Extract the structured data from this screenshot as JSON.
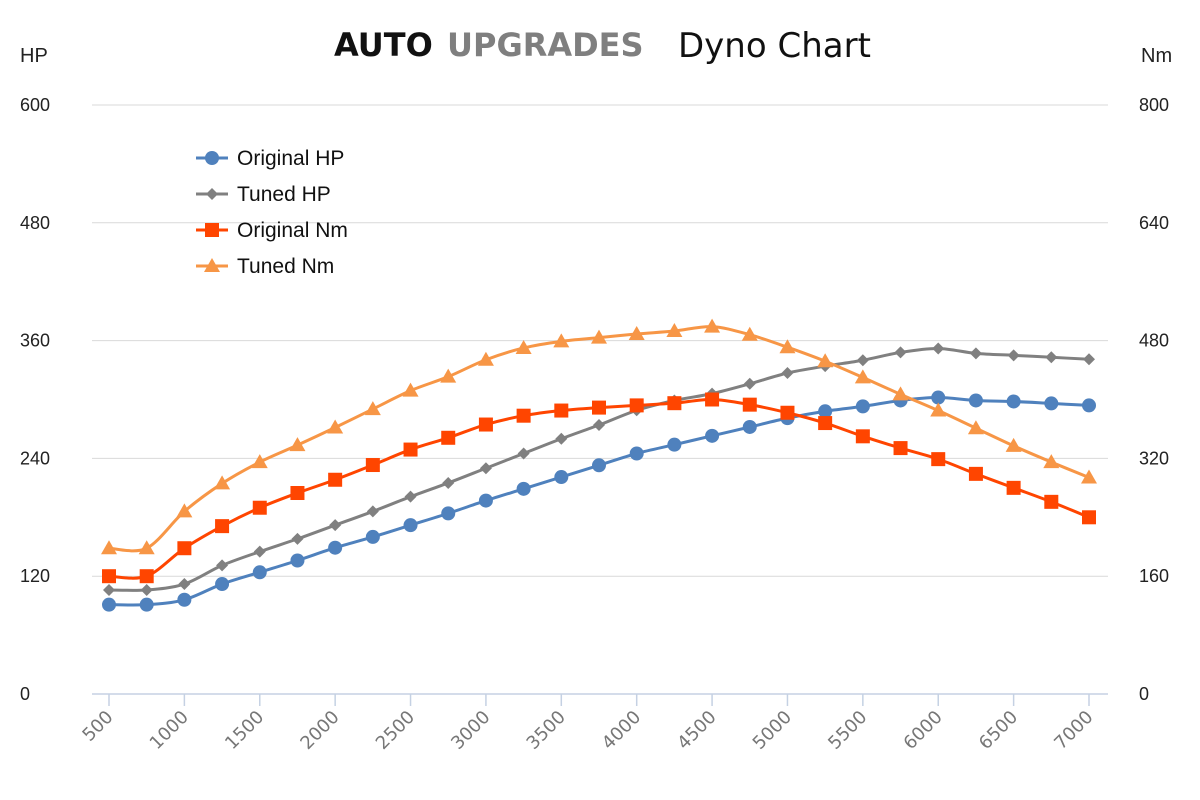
{
  "header": {
    "brand_bold": "AUTO",
    "brand_gray": "UPGRADES",
    "title": "Dyno Chart"
  },
  "chart_data": {
    "type": "line",
    "title": "Dyno Chart",
    "ylabel_left": "HP",
    "ylabel_right": "Nm",
    "ylim_left": [
      0,
      600
    ],
    "ylim_right": [
      0,
      800
    ],
    "yticks_left": [
      "0",
      "120",
      "240",
      "360",
      "480",
      "600"
    ],
    "yticks_right": [
      "0",
      "160",
      "320",
      "480",
      "640",
      "800"
    ],
    "x": [
      500,
      750,
      1000,
      1250,
      1500,
      1750,
      2000,
      2250,
      2500,
      2750,
      3000,
      3250,
      3500,
      3750,
      4000,
      4250,
      4500,
      4750,
      5000,
      5250,
      5500,
      5750,
      6000,
      6250,
      6500,
      6750,
      7000
    ],
    "xticks": [
      "500",
      "1000",
      "1500",
      "2000",
      "2500",
      "3000",
      "3500",
      "4000",
      "4500",
      "5000",
      "5500",
      "6000",
      "6500",
      "7000"
    ],
    "grid": true,
    "legend": "top-left",
    "series": [
      {
        "name": "Original HP",
        "axis": "left",
        "color": "#4f81bd",
        "marker": "circle",
        "values": [
          91,
          91,
          96,
          112,
          124,
          136,
          149,
          160,
          172,
          184,
          197,
          209,
          221,
          233,
          245,
          254,
          263,
          272,
          281,
          288,
          293,
          299,
          302,
          299,
          298,
          296,
          294
        ]
      },
      {
        "name": "Tuned HP",
        "axis": "left",
        "color": "#808080",
        "marker": "diamond",
        "values": [
          106,
          106,
          112,
          131,
          145,
          158,
          172,
          186,
          201,
          215,
          230,
          245,
          260,
          274,
          289,
          299,
          306,
          316,
          327,
          334,
          340,
          348,
          352,
          347,
          345,
          343,
          341
        ]
      },
      {
        "name": "Original Nm",
        "axis": "right",
        "color": "#ff4500",
        "marker": "square",
        "values": [
          160,
          160,
          198,
          228,
          253,
          273,
          291,
          311,
          332,
          348,
          366,
          378,
          385,
          389,
          392,
          395,
          400,
          393,
          382,
          368,
          350,
          334,
          319,
          299,
          280,
          261,
          240
        ]
      },
      {
        "name": "Tuned Nm",
        "axis": "right",
        "color": "#f79646",
        "marker": "triangle",
        "values": [
          198,
          198,
          248,
          286,
          315,
          338,
          362,
          387,
          412,
          431,
          454,
          470,
          479,
          484,
          489,
          493,
          499,
          488,
          471,
          452,
          430,
          407,
          385,
          361,
          337,
          315,
          294
        ]
      }
    ]
  }
}
